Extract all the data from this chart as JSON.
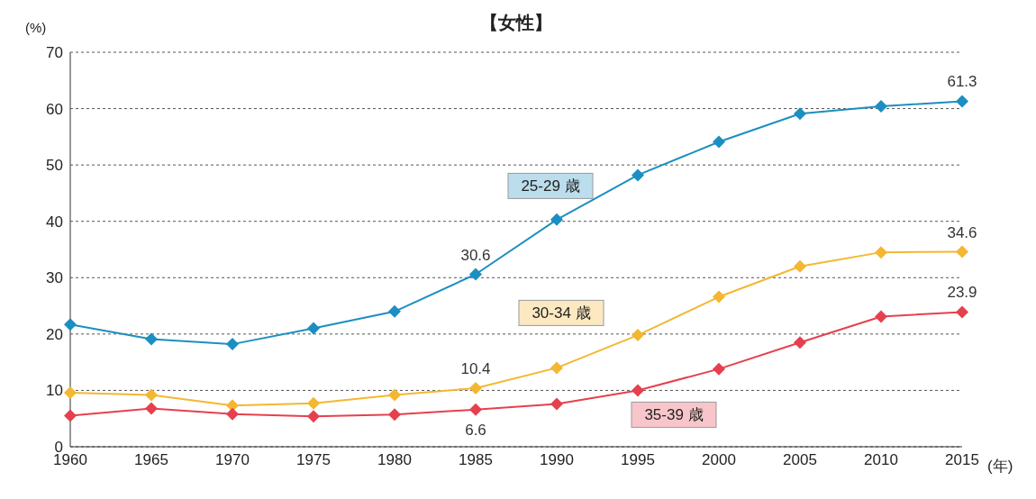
{
  "chart_data": {
    "type": "line",
    "title": "【女性】",
    "ylabel": "(%)",
    "xlabel": "(年)",
    "categories": [
      "1960",
      "1965",
      "1970",
      "1975",
      "1980",
      "1985",
      "1990",
      "1995",
      "2000",
      "2005",
      "2010",
      "2015"
    ],
    "series": [
      {
        "name": "25-29 歳",
        "color": "#1b8fc1",
        "values": [
          21.7,
          19.1,
          18.2,
          21.0,
          24.0,
          30.6,
          40.3,
          48.2,
          54.1,
          59.1,
          60.4,
          61.3
        ],
        "value_labels": [
          null,
          null,
          null,
          null,
          null,
          "30.6",
          null,
          null,
          null,
          null,
          null,
          "61.3"
        ]
      },
      {
        "name": "30-34 歳",
        "color": "#f4b731",
        "values": [
          9.6,
          9.2,
          7.3,
          7.7,
          9.2,
          10.4,
          14.0,
          19.8,
          26.6,
          32.0,
          34.5,
          34.6
        ],
        "value_labels": [
          null,
          null,
          null,
          null,
          null,
          "10.4",
          null,
          null,
          null,
          null,
          null,
          "34.6"
        ]
      },
      {
        "name": "35-39 歳",
        "color": "#e6404e",
        "values": [
          5.5,
          6.8,
          5.8,
          5.4,
          5.7,
          6.6,
          7.6,
          10.0,
          13.8,
          18.5,
          23.1,
          23.9
        ],
        "value_labels": [
          null,
          null,
          null,
          null,
          null,
          "6.6",
          null,
          null,
          null,
          null,
          null,
          "23.9"
        ]
      }
    ],
    "ylim": [
      0,
      70
    ],
    "yticks": [
      0,
      10,
      20,
      30,
      40,
      50,
      60,
      70
    ],
    "grid": "y",
    "marker": "diamond",
    "line_style": "solid",
    "legend": false
  }
}
